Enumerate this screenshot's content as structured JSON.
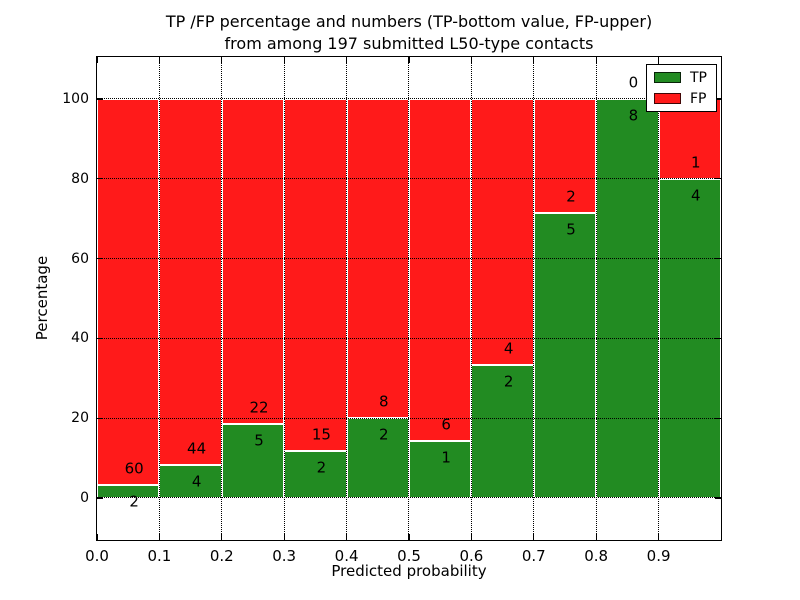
{
  "title": {
    "line1": "TP /FP percentage and numbers (TP-bottom value, FP-upper)",
    "line2": "from among 197 submitted L50-type contacts"
  },
  "chart_data": {
    "type": "bar",
    "stacked": true,
    "title": "TP /FP percentage and numbers (TP-bottom value, FP-upper)\nfrom among 197 submitted L50-type contacts",
    "xlabel": "Predicted probability",
    "ylabel": "Percentage",
    "total_contacts": 197,
    "categories": [
      "0.0-0.1",
      "0.1-0.2",
      "0.2-0.3",
      "0.3-0.4",
      "0.4-0.5",
      "0.5-0.6",
      "0.6-0.7",
      "0.7-0.8",
      "0.8-0.9",
      "0.9-1.0"
    ],
    "bin_starts": [
      0.0,
      0.1,
      0.2,
      0.3,
      0.4,
      0.5,
      0.6,
      0.7,
      0.8,
      0.9
    ],
    "bin_width": 0.1,
    "series": [
      {
        "name": "TP",
        "color": "#228b22",
        "counts": [
          2,
          4,
          5,
          2,
          2,
          1,
          2,
          5,
          8,
          4
        ]
      },
      {
        "name": "FP",
        "color": "#ff1a1a",
        "counts": [
          60,
          44,
          22,
          15,
          8,
          6,
          4,
          2,
          0,
          1
        ]
      }
    ],
    "tp_percent": [
      3.2,
      8.3,
      18.5,
      11.8,
      20.0,
      14.3,
      33.3,
      71.4,
      100.0,
      80.0
    ],
    "bars_note": "Green bar height = TP/(TP+FP)*100, red stacked above to 100%; annotations show raw counts (TP below boundary, FP above)",
    "xticks": [
      "0.0",
      "0.1",
      "0.2",
      "0.3",
      "0.4",
      "0.5",
      "0.6",
      "0.7",
      "0.8",
      "0.9"
    ],
    "yticks": [
      0,
      20,
      40,
      60,
      80,
      100
    ],
    "xlim": [
      0.0,
      1.0
    ],
    "ylim": [
      -10.5,
      110.5
    ],
    "grid": true,
    "legend": {
      "position": "upper right",
      "entries": [
        {
          "label": "TP",
          "color": "#228b22"
        },
        {
          "label": "FP",
          "color": "#ff1a1a"
        }
      ]
    }
  }
}
